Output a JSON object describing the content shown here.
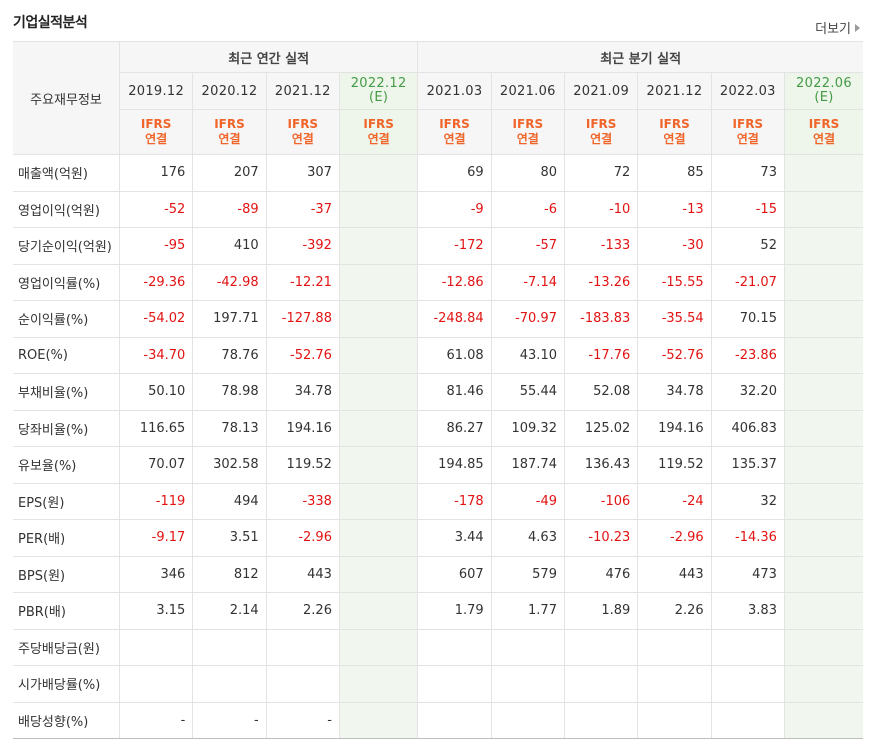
{
  "header": {
    "title": "기업실적분석",
    "more_label": "더보기"
  },
  "table": {
    "row_header": "주요재무정보",
    "groups": [
      "최근 연간 실적",
      "최근 분기 실적"
    ],
    "annual_dates": [
      "2019.12",
      "2020.12",
      "2021.12",
      "2022.12"
    ],
    "quarter_dates": [
      "2021.03",
      "2021.06",
      "2021.09",
      "2021.12",
      "2022.03",
      "2022.06"
    ],
    "estimate_mark": "(E)",
    "ifrs_line1": "IFRS",
    "ifrs_line2": "연결",
    "rows": [
      {
        "label": "매출액(억원)",
        "annual": [
          "176",
          "207",
          "307",
          ""
        ],
        "quarter": [
          "69",
          "80",
          "72",
          "85",
          "73",
          ""
        ]
      },
      {
        "label": "영업이익(억원)",
        "annual": [
          "-52",
          "-89",
          "-37",
          ""
        ],
        "quarter": [
          "-9",
          "-6",
          "-10",
          "-13",
          "-15",
          ""
        ]
      },
      {
        "label": "당기순이익(억원)",
        "annual": [
          "-95",
          "410",
          "-392",
          ""
        ],
        "quarter": [
          "-172",
          "-57",
          "-133",
          "-30",
          "52",
          ""
        ]
      },
      {
        "label": "영업이익률(%)",
        "annual": [
          "-29.36",
          "-42.98",
          "-12.21",
          ""
        ],
        "quarter": [
          "-12.86",
          "-7.14",
          "-13.26",
          "-15.55",
          "-21.07",
          ""
        ]
      },
      {
        "label": "순이익률(%)",
        "annual": [
          "-54.02",
          "197.71",
          "-127.88",
          ""
        ],
        "quarter": [
          "-248.84",
          "-70.97",
          "-183.83",
          "-35.54",
          "70.15",
          ""
        ]
      },
      {
        "label": "ROE(%)",
        "annual": [
          "-34.70",
          "78.76",
          "-52.76",
          ""
        ],
        "quarter": [
          "61.08",
          "43.10",
          "-17.76",
          "-52.76",
          "-23.86",
          ""
        ]
      },
      {
        "label": "부채비율(%)",
        "annual": [
          "50.10",
          "78.98",
          "34.78",
          ""
        ],
        "quarter": [
          "81.46",
          "55.44",
          "52.08",
          "34.78",
          "32.20",
          ""
        ]
      },
      {
        "label": "당좌비율(%)",
        "annual": [
          "116.65",
          "78.13",
          "194.16",
          ""
        ],
        "quarter": [
          "86.27",
          "109.32",
          "125.02",
          "194.16",
          "406.83",
          ""
        ]
      },
      {
        "label": "유보율(%)",
        "annual": [
          "70.07",
          "302.58",
          "119.52",
          ""
        ],
        "quarter": [
          "194.85",
          "187.74",
          "136.43",
          "119.52",
          "135.37",
          ""
        ]
      },
      {
        "label": "EPS(원)",
        "annual": [
          "-119",
          "494",
          "-338",
          ""
        ],
        "quarter": [
          "-178",
          "-49",
          "-106",
          "-24",
          "32",
          ""
        ]
      },
      {
        "label": "PER(배)",
        "annual": [
          "-9.17",
          "3.51",
          "-2.96",
          ""
        ],
        "quarter": [
          "3.44",
          "4.63",
          "-10.23",
          "-2.96",
          "-14.36",
          ""
        ]
      },
      {
        "label": "BPS(원)",
        "annual": [
          "346",
          "812",
          "443",
          ""
        ],
        "quarter": [
          "607",
          "579",
          "476",
          "443",
          "473",
          ""
        ]
      },
      {
        "label": "PBR(배)",
        "annual": [
          "3.15",
          "2.14",
          "2.26",
          ""
        ],
        "quarter": [
          "1.79",
          "1.77",
          "1.89",
          "2.26",
          "3.83",
          ""
        ]
      },
      {
        "label": "주당배당금(원)",
        "annual": [
          "",
          "",
          "",
          ""
        ],
        "quarter": [
          "",
          "",
          "",
          "",
          "",
          ""
        ]
      },
      {
        "label": "시가배당률(%)",
        "annual": [
          "",
          "",
          "",
          ""
        ],
        "quarter": [
          "",
          "",
          "",
          "",
          "",
          ""
        ]
      },
      {
        "label": "배당성향(%)",
        "annual": [
          "-",
          "-",
          "-",
          ""
        ],
        "quarter": [
          "",
          "",
          "",
          "",
          "",
          ""
        ]
      }
    ]
  },
  "colors": {
    "negative": "#e21313",
    "ifrs": "#f0652a",
    "estimate": "#449b45"
  }
}
